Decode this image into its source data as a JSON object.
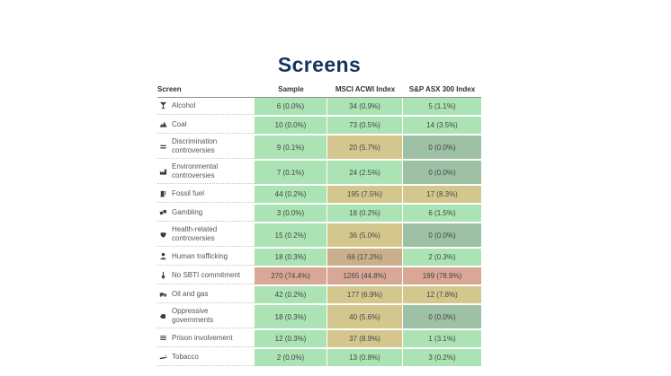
{
  "title": "Screens",
  "colors": {
    "title_navy": "#14355c",
    "green": "#abe3b4",
    "sage": "#9ec1a5",
    "khaki": "#d4c78e",
    "brown": "#cab08a",
    "salmon": "#d8a795",
    "icon_gray": "#3c3c3c"
  },
  "table": {
    "headers": [
      "Screen",
      "Sample",
      "MSCI ACWI Index",
      "S&P ASX 300 Index"
    ],
    "rows": [
      {
        "icon": "alcohol-icon",
        "label": "Alcohol",
        "cells": [
          {
            "text": "6 (0.0%)",
            "tone": "green"
          },
          {
            "text": "34 (0.9%)",
            "tone": "green"
          },
          {
            "text": "5 (1.1%)",
            "tone": "green"
          }
        ]
      },
      {
        "icon": "coal-icon",
        "label": "Coal",
        "cells": [
          {
            "text": "10 (0.0%)",
            "tone": "green"
          },
          {
            "text": "73 (0.5%)",
            "tone": "green"
          },
          {
            "text": "14 (3.5%)",
            "tone": "green"
          }
        ]
      },
      {
        "icon": "discrimination-icon",
        "label": "Discrimination controversies",
        "cells": [
          {
            "text": "9 (0.1%)",
            "tone": "green"
          },
          {
            "text": "20 (5.7%)",
            "tone": "khaki"
          },
          {
            "text": "0 (0.0%)",
            "tone": "sage"
          }
        ]
      },
      {
        "icon": "environment-icon",
        "label": "Environmental controversies",
        "cells": [
          {
            "text": "7 (0.1%)",
            "tone": "green"
          },
          {
            "text": "24 (2.5%)",
            "tone": "green"
          },
          {
            "text": "0 (0.0%)",
            "tone": "sage"
          }
        ]
      },
      {
        "icon": "fossil-fuel-icon",
        "label": "Fossil fuel",
        "cells": [
          {
            "text": "44 (0.2%)",
            "tone": "green"
          },
          {
            "text": "195 (7.5%)",
            "tone": "khaki"
          },
          {
            "text": "17 (8.3%)",
            "tone": "khaki"
          }
        ]
      },
      {
        "icon": "gambling-icon",
        "label": "Gambling",
        "cells": [
          {
            "text": "3 (0.0%)",
            "tone": "green"
          },
          {
            "text": "18 (0.2%)",
            "tone": "green"
          },
          {
            "text": "6 (1.5%)",
            "tone": "green"
          }
        ]
      },
      {
        "icon": "health-icon",
        "label": "Health-related controversies",
        "cells": [
          {
            "text": "15 (0.2%)",
            "tone": "green"
          },
          {
            "text": "36 (5.0%)",
            "tone": "khaki"
          },
          {
            "text": "0 (0.0%)",
            "tone": "sage"
          }
        ]
      },
      {
        "icon": "human-trafficking-icon",
        "label": "Human trafficking",
        "cells": [
          {
            "text": "18 (0.3%)",
            "tone": "green"
          },
          {
            "text": "66 (17.2%)",
            "tone": "brown"
          },
          {
            "text": "2 (0.3%)",
            "tone": "green"
          }
        ]
      },
      {
        "icon": "thermometer-icon",
        "label": "No SBTI commitment",
        "cells": [
          {
            "text": "270 (74.4%)",
            "tone": "salmon"
          },
          {
            "text": "1265 (44.8%)",
            "tone": "salmon"
          },
          {
            "text": "199 (78.9%)",
            "tone": "salmon"
          }
        ]
      },
      {
        "icon": "oil-gas-icon",
        "label": "Oil and gas",
        "cells": [
          {
            "text": "42 (0.2%)",
            "tone": "green"
          },
          {
            "text": "177 (6.9%)",
            "tone": "khaki"
          },
          {
            "text": "12 (7.8%)",
            "tone": "khaki"
          }
        ]
      },
      {
        "icon": "fist-icon",
        "label": "Oppressive governments",
        "cells": [
          {
            "text": "18 (0.3%)",
            "tone": "green"
          },
          {
            "text": "40 (5.6%)",
            "tone": "khaki"
          },
          {
            "text": "0 (0.0%)",
            "tone": "sage"
          }
        ]
      },
      {
        "icon": "prison-bars-icon",
        "label": "Prison involvement",
        "cells": [
          {
            "text": "12 (0.3%)",
            "tone": "green"
          },
          {
            "text": "37 (8.9%)",
            "tone": "khaki"
          },
          {
            "text": "1 (3.1%)",
            "tone": "green"
          }
        ]
      },
      {
        "icon": "cigarette-icon",
        "label": "Tobacco",
        "cells": [
          {
            "text": "2 (0.0%)",
            "tone": "green"
          },
          {
            "text": "13 (0.8%)",
            "tone": "green"
          },
          {
            "text": "3 (0.2%)",
            "tone": "green"
          }
        ]
      }
    ]
  },
  "chart_data": {
    "type": "table",
    "title": "Screens",
    "columns": [
      "Screen",
      "Sample",
      "MSCI ACWI Index",
      "S&P ASX 300 Index"
    ],
    "row_format": [
      "screen",
      "sample_count",
      "sample_pct",
      "msci_acwi_count",
      "msci_acwi_pct",
      "sp_asx300_count",
      "sp_asx300_pct"
    ],
    "rows": [
      [
        "Alcohol",
        6,
        0.0,
        34,
        0.9,
        5,
        1.1
      ],
      [
        "Coal",
        10,
        0.0,
        73,
        0.5,
        14,
        3.5
      ],
      [
        "Discrimination controversies",
        9,
        0.1,
        20,
        5.7,
        0,
        0.0
      ],
      [
        "Environmental controversies",
        7,
        0.1,
        24,
        2.5,
        0,
        0.0
      ],
      [
        "Fossil fuel",
        44,
        0.2,
        195,
        7.5,
        17,
        8.3
      ],
      [
        "Gambling",
        3,
        0.0,
        18,
        0.2,
        6,
        1.5
      ],
      [
        "Health-related controversies",
        15,
        0.2,
        36,
        5.0,
        0,
        0.0
      ],
      [
        "Human trafficking",
        18,
        0.3,
        66,
        17.2,
        2,
        0.3
      ],
      [
        "No SBTI commitment",
        270,
        74.4,
        1265,
        44.8,
        199,
        78.9
      ],
      [
        "Oil and gas",
        42,
        0.2,
        177,
        6.9,
        12,
        7.8
      ],
      [
        "Oppressive governments",
        18,
        0.3,
        40,
        5.6,
        0,
        0.0
      ],
      [
        "Prison involvement",
        12,
        0.3,
        37,
        8.9,
        1,
        3.1
      ],
      [
        "Tobacco",
        2,
        0.0,
        13,
        0.8,
        3,
        0.2
      ]
    ],
    "legend": "cell shading encodes exposure percentage: green = low, khaki/brown = medium, salmon = high, sage = zero holdings"
  }
}
